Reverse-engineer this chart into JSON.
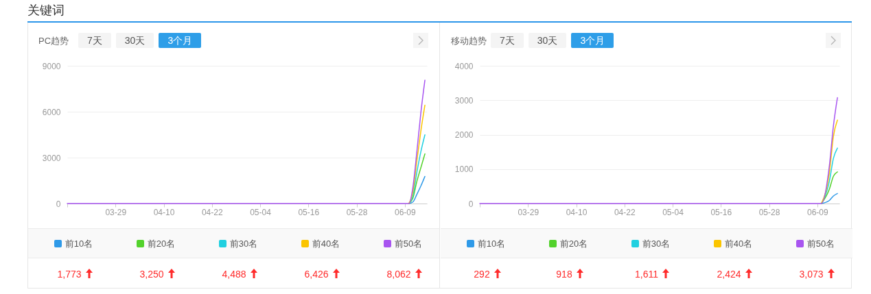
{
  "chart_data": [
    {
      "type": "other",
      "title": "关键词"
    },
    {
      "type": "line",
      "title": "PC趋势",
      "annotations": [
        "7天",
        "30天",
        "3个月",
        "1,773",
        "3,250",
        "4,488",
        "6,426",
        "8,062"
      ],
      "x": [
        "--03-17",
        "--06-09",
        "--06-10",
        "--06-11",
        "--06-12",
        "--06-13",
        "--06-14"
      ],
      "xlim": [
        "--03-17",
        "--06-14T12:00"
      ],
      "xticks": [
        {
          "value": "--03-17",
          "label": null
        },
        {
          "value": "--03-29",
          "label": "03-29"
        },
        {
          "value": "--04-10",
          "label": "04-10"
        },
        {
          "value": "--04-22",
          "label": "04-22"
        },
        {
          "value": "--05-04",
          "label": "05-04"
        },
        {
          "value": "--05-16",
          "label": "05-16"
        },
        {
          "value": "--05-28",
          "label": "05-28"
        },
        {
          "value": "--06-09",
          "label": "06-09"
        }
      ],
      "ylim": [
        0,
        9000
      ],
      "yticks": [
        0,
        3000,
        6000,
        9000
      ],
      "grid": "y",
      "legend": "bottom",
      "series": [
        {
          "name": "前10名",
          "color": "#2f9ae8",
          "x": [
            "--06-10",
            "--06-11",
            "--06-12",
            "--06-13",
            "--06-14"
          ],
          "values": [
            0,
            100,
            600,
            1150,
            1773
          ]
        },
        {
          "name": "前20名",
          "color": "#53d22c",
          "x": [
            "--06-10",
            "--06-11",
            "--06-12",
            "--06-13",
            "--06-14"
          ],
          "values": [
            0,
            350,
            1450,
            2350,
            3250
          ]
        },
        {
          "name": "前30名",
          "color": "#20d0e0",
          "x": [
            "--06-10",
            "--06-11",
            "--06-12",
            "--06-13",
            "--06-14"
          ],
          "values": [
            0,
            500,
            2050,
            3400,
            4488
          ]
        },
        {
          "name": "前40名",
          "color": "#fbc500",
          "x": [
            "--06-10",
            "--06-11",
            "--06-12",
            "--06-13",
            "--06-14"
          ],
          "values": [
            0,
            750,
            2800,
            4750,
            6426
          ]
        },
        {
          "name": "前50名",
          "color": "#a855f0",
          "values": [
            0,
            0,
            0,
            1050,
            3400,
            5950,
            8062
          ]
        }
      ]
    },
    {
      "type": "line",
      "title": "移动趋势",
      "annotations": [
        "7天",
        "30天",
        "3个月",
        "292",
        "918",
        "1,611",
        "2,424",
        "3,073"
      ],
      "x": [
        "--03-17",
        "--06-09",
        "--06-10",
        "--06-12",
        "--06-13",
        "--06-14"
      ],
      "xlim": [
        "--03-17",
        "--06-14T12:00"
      ],
      "xticks": [
        {
          "value": "--03-17",
          "label": null
        },
        {
          "value": "--03-29",
          "label": "03-29"
        },
        {
          "value": "--04-10",
          "label": "04-10"
        },
        {
          "value": "--04-22",
          "label": "04-22"
        },
        {
          "value": "--05-04",
          "label": "05-04"
        },
        {
          "value": "--05-16",
          "label": "05-16"
        },
        {
          "value": "--05-28",
          "label": "05-28"
        },
        {
          "value": "--06-09",
          "label": "06-09"
        }
      ],
      "ylim": [
        0,
        4000
      ],
      "yticks": [
        0,
        1000,
        2000,
        3000,
        4000
      ],
      "grid": "y",
      "legend": "bottom",
      "series": [
        {
          "name": "前10名",
          "color": "#2f9ae8",
          "x": [
            "--06-10",
            "--06-12",
            "--06-13",
            "--06-14"
          ],
          "values": [
            0,
            90,
            220,
            292
          ]
        },
        {
          "name": "前20名",
          "color": "#53d22c",
          "x": [
            "--06-10",
            "--06-12",
            "--06-13",
            "--06-14"
          ],
          "values": [
            0,
            420,
            790,
            918
          ]
        },
        {
          "name": "前30名",
          "color": "#20d0e0",
          "x": [
            "--06-10",
            "--06-12",
            "--06-13",
            "--06-14"
          ],
          "values": [
            0,
            650,
            1310,
            1611
          ]
        },
        {
          "name": "前40名",
          "color": "#fbc500",
          "x": [
            "--06-10",
            "--06-12",
            "--06-13",
            "--06-14"
          ],
          "values": [
            0,
            900,
            1950,
            2424
          ]
        },
        {
          "name": "前50名",
          "color": "#a855f0",
          "values": [
            0,
            0,
            0,
            1100,
            2250,
            3073
          ]
        }
      ]
    }
  ]
}
